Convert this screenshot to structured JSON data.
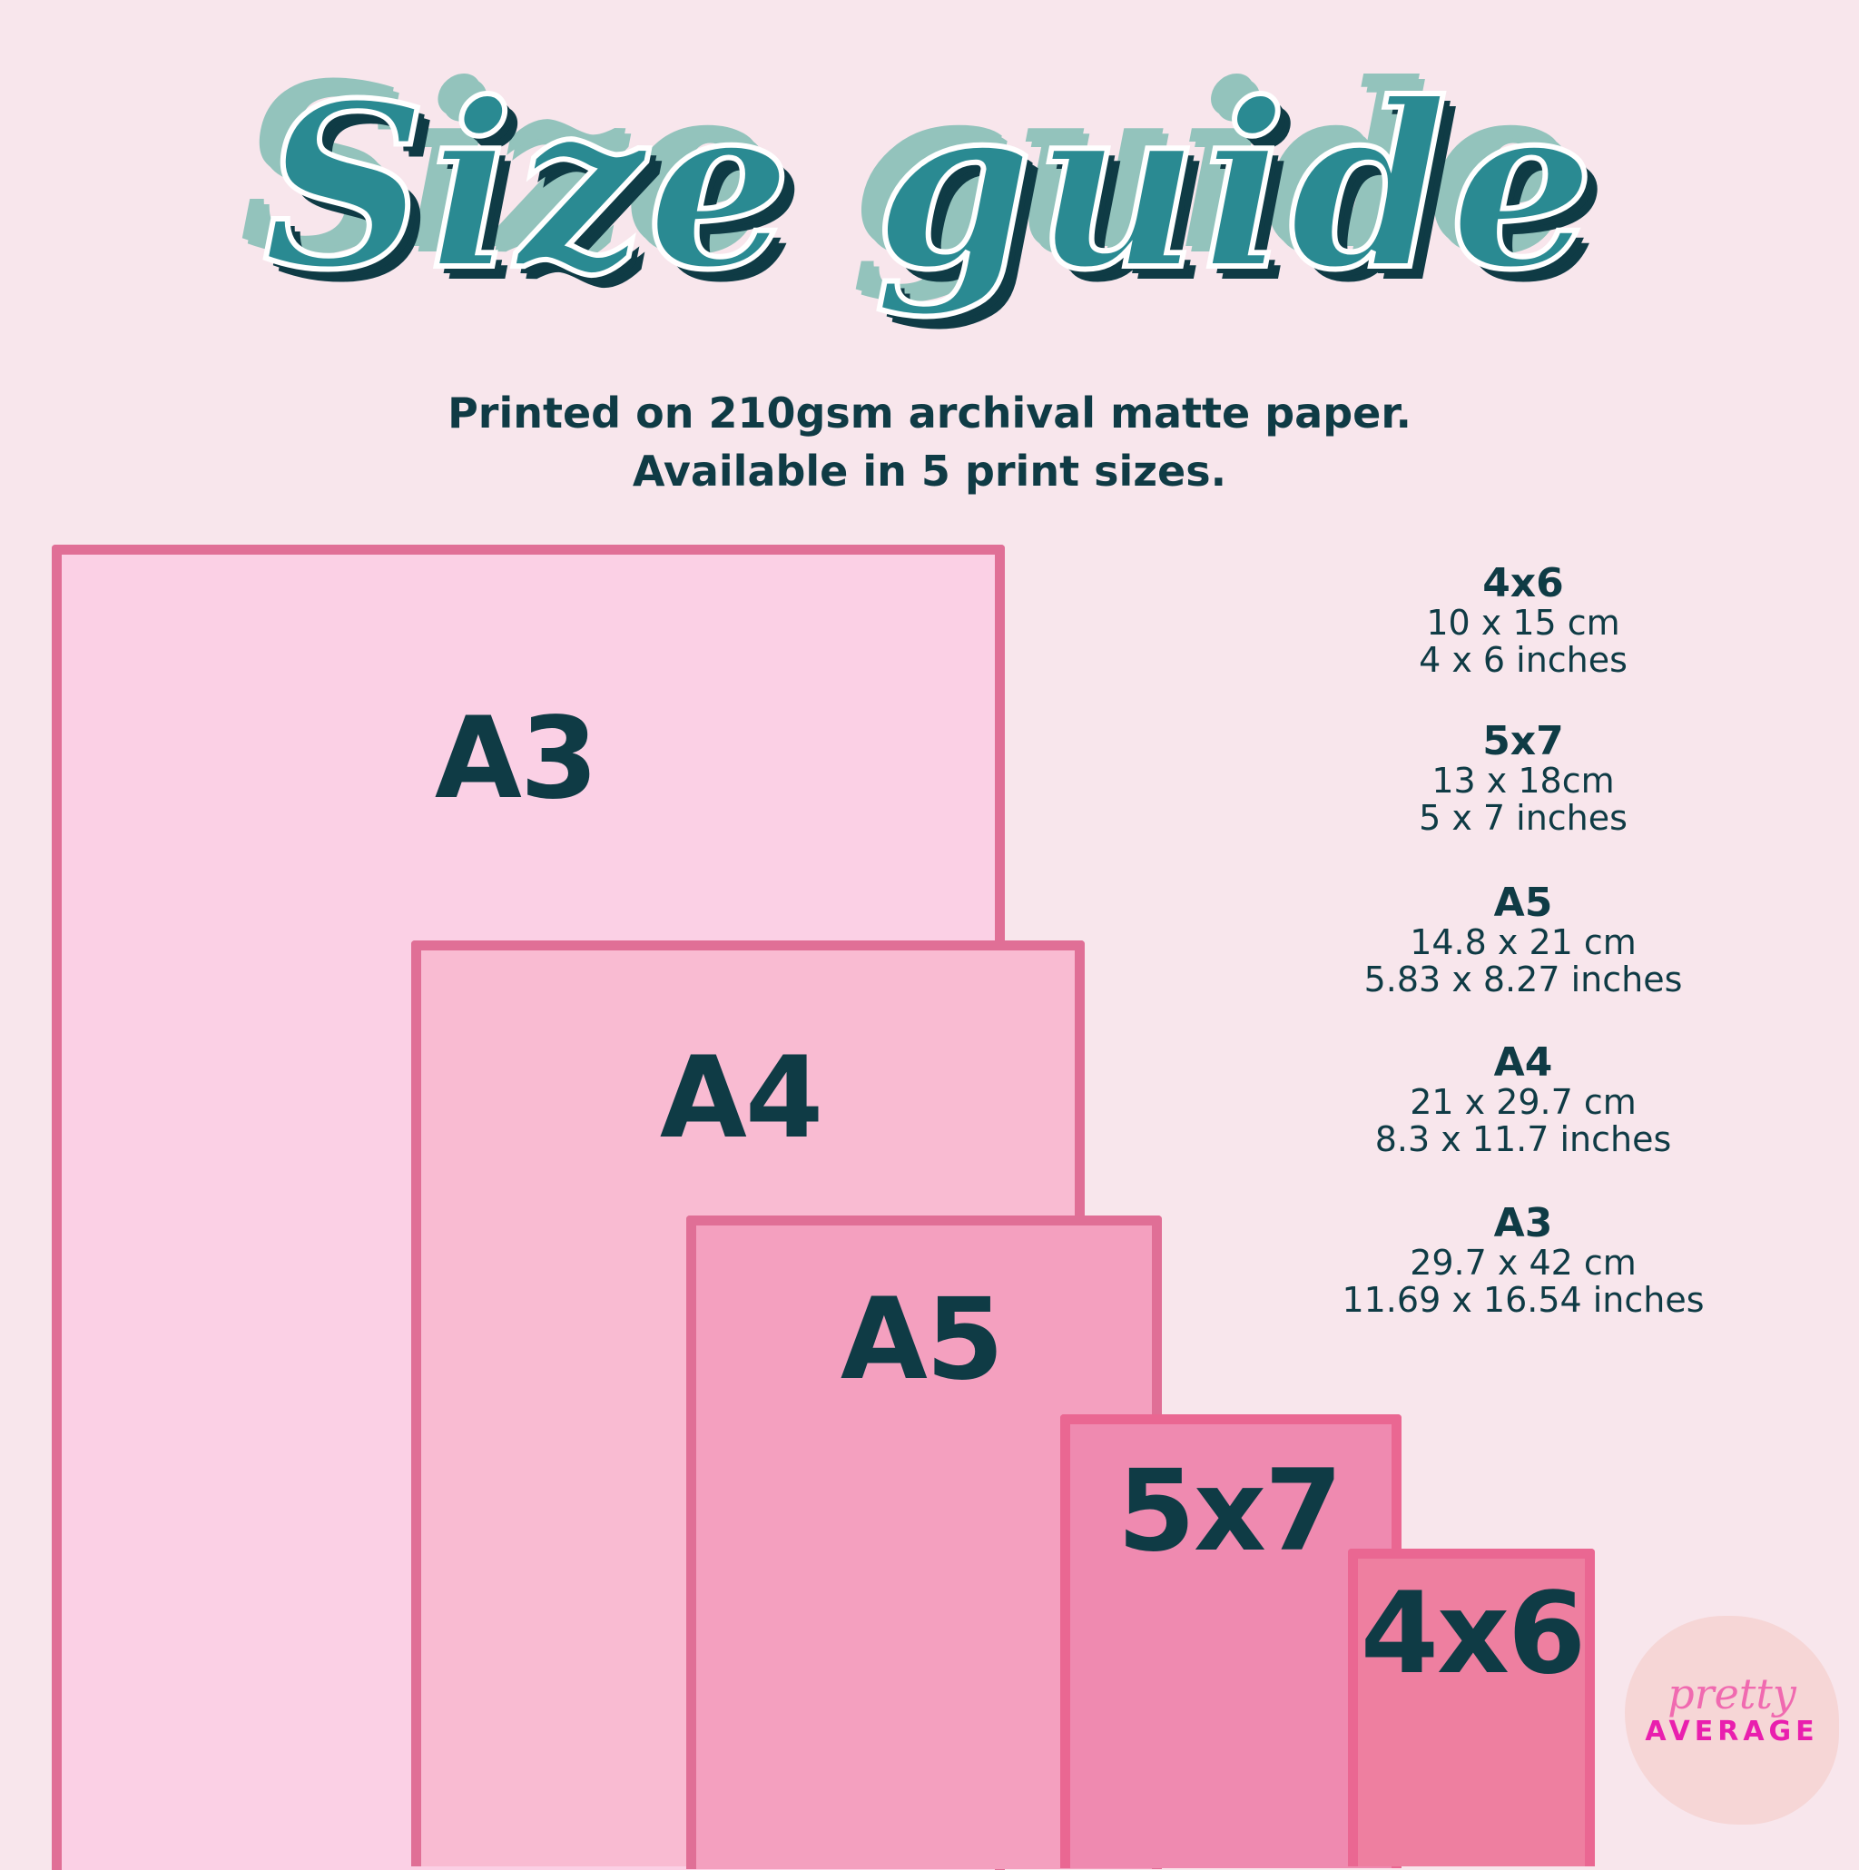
{
  "title": "Size guide",
  "subtitle": {
    "line1": "Printed on 210gsm archival matte paper.",
    "line2": "Available in 5 print sizes."
  },
  "sizes": [
    {
      "name": "A3",
      "fill": "#fbd0e5"
    },
    {
      "name": "A4",
      "fill": "#f9bbd2"
    },
    {
      "name": "A5",
      "fill": "#f4a0bf"
    },
    {
      "name": "5x7",
      "fill": "#ef8ab0"
    },
    {
      "name": "4x6",
      "fill": "#ee7fa0"
    }
  ],
  "specs": [
    {
      "name": "4x6",
      "cm": "10 x 15 cm",
      "inches": "4 x 6 inches"
    },
    {
      "name": "5x7",
      "cm": "13 x 18cm",
      "inches": "5 x 7 inches"
    },
    {
      "name": "A5",
      "cm": "14.8 x 21 cm",
      "inches": "5.83 x 8.27 inches"
    },
    {
      "name": "A4",
      "cm": "21 x 29.7 cm",
      "inches": "8.3 x 11.7 inches"
    },
    {
      "name": "A3",
      "cm": "29.7 x 42 cm",
      "inches": "11.69 x 16.54 inches"
    }
  ],
  "logo": {
    "line1": "pretty",
    "line2": "AVERAGE"
  },
  "colors": {
    "text": "#0f3b45",
    "background": "#f8e6ec",
    "border": "#e06f96"
  }
}
